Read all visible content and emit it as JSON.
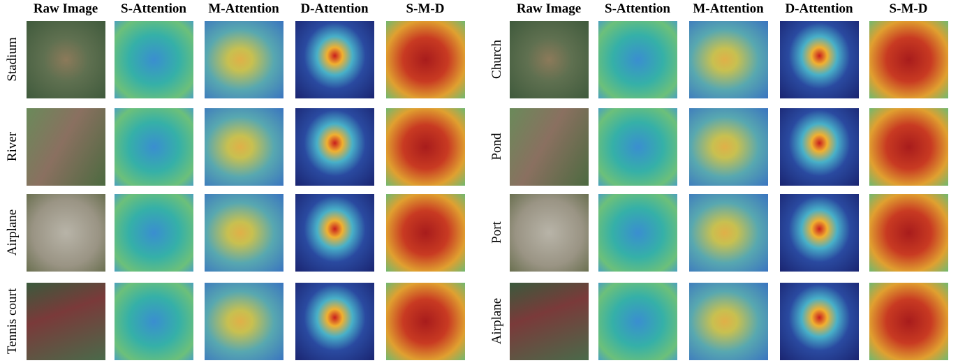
{
  "panels": [
    {
      "headers": [
        "Raw Image",
        "S-Attention",
        "M-Attention",
        "D-Attention",
        "S-M-D"
      ],
      "rows": [
        "Stadium",
        "River",
        "Airplane",
        "Tennis court"
      ]
    },
    {
      "headers": [
        "Raw Image",
        "S-Attention",
        "M-Attention",
        "D-Attention",
        "S-M-D"
      ],
      "rows": [
        "Church",
        "Pond",
        "Port",
        "Airplane"
      ]
    }
  ]
}
